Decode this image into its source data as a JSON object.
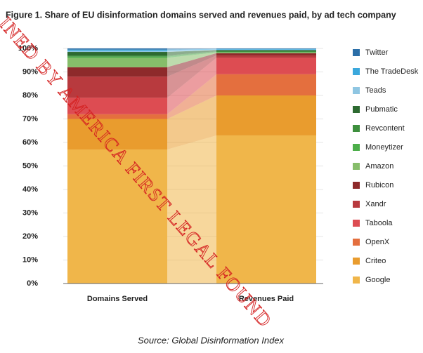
{
  "chart_data": {
    "type": "stacked_bar",
    "title": "Figure 1. Share of EU disinformation domains served and revenues paid, by ad tech company",
    "source": "Source: Global Disinformation Index",
    "watermark": "INED BY AMERICA FIRST LEGAL FOUND",
    "categories": [
      "Domains Served",
      "Revenues Paid"
    ],
    "series": [
      {
        "name": "Twitter",
        "color": "#2b6fa8",
        "values": [
          0.5,
          0.2
        ]
      },
      {
        "name": "The TradeDesk",
        "color": "#3ba8dc",
        "values": [
          0.5,
          0.3
        ]
      },
      {
        "name": "Teads",
        "color": "#8fc6e2",
        "values": [
          0.5,
          0.2
        ]
      },
      {
        "name": "Pubmatic",
        "color": "#2d6a31",
        "values": [
          1.5,
          0.5
        ]
      },
      {
        "name": "Revcontent",
        "color": "#3d8f3d",
        "values": [
          0.5,
          0.3
        ]
      },
      {
        "name": "Moneytizer",
        "color": "#4cae4a",
        "values": [
          0.5,
          0.2
        ]
      },
      {
        "name": "Amazon",
        "color": "#86bd6a",
        "values": [
          4,
          0.3
        ]
      },
      {
        "name": "Rubicon",
        "color": "#8e2a2b",
        "values": [
          4,
          1
        ]
      },
      {
        "name": "Xandr",
        "color": "#b83a3e",
        "values": [
          9,
          1
        ]
      },
      {
        "name": "Taboola",
        "color": "#dd4c52",
        "values": [
          7,
          7
        ]
      },
      {
        "name": "OpenX",
        "color": "#e46f3e",
        "values": [
          2,
          9
        ]
      },
      {
        "name": "Criteo",
        "color": "#e99c2e",
        "values": [
          13,
          17
        ]
      },
      {
        "name": "Google",
        "color": "#f0b64a",
        "values": [
          57,
          63
        ]
      }
    ],
    "ylim": [
      0,
      100
    ],
    "yticks": [
      {
        "value": 0,
        "label": "0%"
      },
      {
        "value": 10,
        "label": "10%"
      },
      {
        "value": 20,
        "label": "20%"
      },
      {
        "value": 30,
        "label": "30%"
      },
      {
        "value": 40,
        "label": "40%"
      },
      {
        "value": 50,
        "label": "50%"
      },
      {
        "value": 60,
        "label": "60%"
      },
      {
        "value": 70,
        "label": "70%"
      },
      {
        "value": 80,
        "label": "80%"
      },
      {
        "value": 90,
        "label": "90%"
      },
      {
        "value": 100,
        "label": "100%"
      }
    ],
    "grid": true
  }
}
